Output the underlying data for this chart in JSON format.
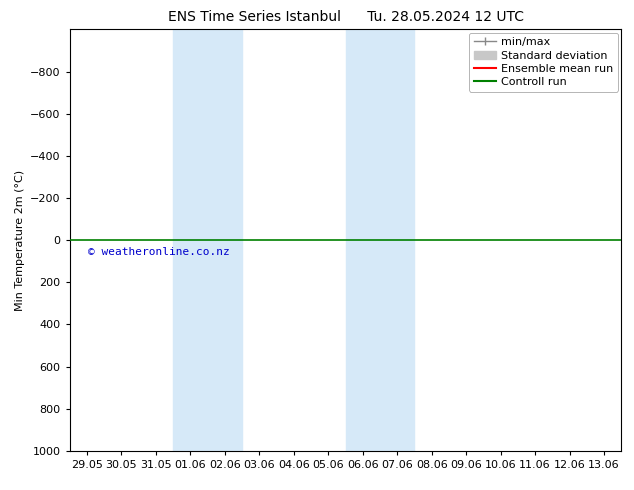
{
  "title_left": "ENS Time Series Istanbul",
  "title_right": "Tu. 28.05.2024 12 UTC",
  "ylabel": "Min Temperature 2m (°C)",
  "ylim_top": -1000,
  "ylim_bottom": 1000,
  "yticks": [
    -800,
    -600,
    -400,
    -200,
    0,
    200,
    400,
    600,
    800,
    1000
  ],
  "x_tick_labels": [
    "29.05",
    "30.05",
    "31.05",
    "01.06",
    "02.06",
    "03.06",
    "04.06",
    "05.06",
    "06.06",
    "07.06",
    "08.06",
    "09.06",
    "10.06",
    "11.06",
    "12.06",
    "13.06"
  ],
  "x_tick_values": [
    0,
    1,
    2,
    3,
    4,
    5,
    6,
    7,
    8,
    9,
    10,
    11,
    12,
    13,
    14,
    15
  ],
  "xlim": [
    -0.5,
    15.5
  ],
  "shaded_bands": [
    {
      "xmin": 3,
      "xmax": 5,
      "color": "#d6e9f8"
    },
    {
      "xmin": 8,
      "xmax": 10,
      "color": "#d6e9f8"
    }
  ],
  "control_run_y": 0,
  "control_run_color": "#008000",
  "ensemble_mean_color": "#ff0000",
  "minmax_color": "#888888",
  "std_dev_color": "#c8c8c8",
  "copyright_text": "© weatheronline.co.nz",
  "copyright_color": "#0000cc",
  "background_color": "#ffffff",
  "plot_background": "#ffffff",
  "title_fontsize": 10,
  "axis_fontsize": 8,
  "tick_fontsize": 8,
  "legend_fontsize": 8
}
